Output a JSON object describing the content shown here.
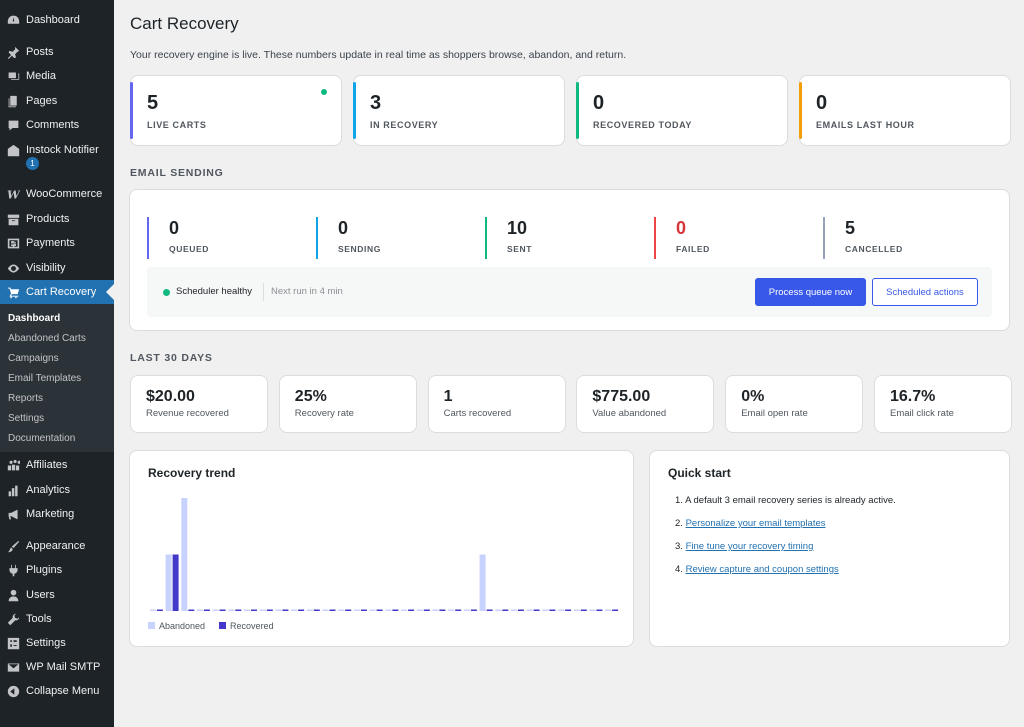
{
  "sidebar": {
    "menu": [
      {
        "label": "Dashboard",
        "icon": "dashboard-icon"
      },
      {
        "label": "Posts",
        "icon": "pin-icon"
      },
      {
        "label": "Media",
        "icon": "media-icon"
      },
      {
        "label": "Pages",
        "icon": "pages-icon"
      },
      {
        "label": "Comments",
        "icon": "comment-icon"
      },
      {
        "label": "Instock Notifier",
        "icon": "store-icon"
      },
      {
        "label": "WooCommerce",
        "icon": "woo-icon"
      },
      {
        "label": "Products",
        "icon": "archive-icon"
      },
      {
        "label": "Payments",
        "icon": "dollar-icon"
      },
      {
        "label": "Visibility",
        "icon": "eye-icon"
      },
      {
        "label": "Cart Recovery",
        "icon": "cart-icon"
      },
      {
        "label": "Affiliates",
        "icon": "groups-icon"
      },
      {
        "label": "Analytics",
        "icon": "chart-icon"
      },
      {
        "label": "Marketing",
        "icon": "megaphone-icon"
      },
      {
        "label": "Appearance",
        "icon": "brush-icon"
      },
      {
        "label": "Plugins",
        "icon": "plug-icon"
      },
      {
        "label": "Users",
        "icon": "user-icon"
      },
      {
        "label": "Tools",
        "icon": "wrench-icon"
      },
      {
        "label": "Settings",
        "icon": "settings-icon"
      },
      {
        "label": "WP Mail SMTP",
        "icon": "mail-icon"
      },
      {
        "label": "Collapse Menu",
        "icon": "collapse-icon"
      }
    ],
    "instock_badge": "1",
    "submenu": [
      "Dashboard",
      "Abandoned Carts",
      "Campaigns",
      "Email Templates",
      "Reports",
      "Settings",
      "Documentation"
    ]
  },
  "page": {
    "title": "Cart Recovery",
    "subtitle": "Your recovery engine is live. These numbers update in real time as shoppers browse, abandon, and return."
  },
  "live_stats": [
    {
      "value": "5",
      "label": "LIVE CARTS",
      "color": "#6366f1"
    },
    {
      "value": "3",
      "label": "IN RECOVERY",
      "color": "#0ea5e9"
    },
    {
      "value": "0",
      "label": "RECOVERED TODAY",
      "color": "#10b981"
    },
    {
      "value": "0",
      "label": "EMAILS LAST HOUR",
      "color": "#f59e0b"
    }
  ],
  "email_sending": {
    "heading": "EMAIL SENDING",
    "stats": [
      {
        "value": "0",
        "label": "QUEUED",
        "color": "#6366f1"
      },
      {
        "value": "0",
        "label": "SENDING",
        "color": "#0ea5e9"
      },
      {
        "value": "10",
        "label": "SENT",
        "color": "#10b981"
      },
      {
        "value": "0",
        "label": "FAILED",
        "color": "#ef4444"
      },
      {
        "value": "5",
        "label": "CANCELLED",
        "color": "#94a3b8"
      }
    ],
    "scheduler_status": "Scheduler healthy",
    "next_run": "Next run in 4 min",
    "process_button": "Process queue now",
    "scheduled_button": "Scheduled actions"
  },
  "last_30_days": {
    "heading": "LAST 30 DAYS",
    "metrics": [
      {
        "value": "$20.00",
        "label": "Revenue recovered"
      },
      {
        "value": "25%",
        "label": "Recovery rate"
      },
      {
        "value": "1",
        "label": "Carts recovered"
      },
      {
        "value": "$775.00",
        "label": "Value abandoned"
      },
      {
        "value": "0%",
        "label": "Email open rate"
      },
      {
        "value": "16.7%",
        "label": "Email click rate"
      }
    ]
  },
  "chart_data": {
    "type": "bar",
    "title": "Recovery trend",
    "categories_count": 30,
    "series": [
      {
        "name": "Abandoned",
        "color": "#c7d2fe",
        "values": [
          0,
          1,
          2,
          0,
          0,
          0,
          0,
          0,
          0,
          0,
          0,
          0,
          0,
          0,
          0,
          0,
          0,
          0,
          0,
          0,
          0,
          1,
          0,
          0,
          0,
          0,
          0,
          0,
          0,
          0
        ]
      },
      {
        "name": "Recovered",
        "color": "#4338ca",
        "values": [
          0,
          1,
          0,
          0,
          0,
          0,
          0,
          0,
          0,
          0,
          0,
          0,
          0,
          0,
          0,
          0,
          0,
          0,
          0,
          0,
          0,
          0,
          0,
          0,
          0,
          0,
          0,
          0,
          0,
          0
        ]
      }
    ],
    "ylim": [
      0,
      2
    ],
    "legend": "bottom-left"
  },
  "quick_start": {
    "title": "Quick start",
    "items": [
      {
        "num": "1.",
        "text": "A default 3 email recovery series is already active.",
        "link": false
      },
      {
        "num": "2.",
        "text": "Personalize your email templates",
        "link": true
      },
      {
        "num": "3.",
        "text": "Fine tune your recovery timing",
        "link": true
      },
      {
        "num": "4.",
        "text": "Review capture and coupon settings",
        "link": true
      }
    ]
  }
}
